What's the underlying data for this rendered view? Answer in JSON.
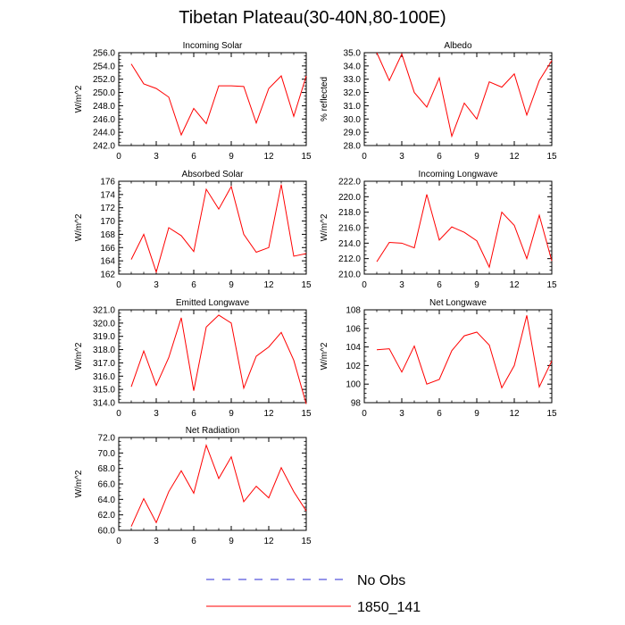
{
  "title": "Tibetan Plateau(30-40N,80-100E)",
  "colors": {
    "model": "#ff0000",
    "obs": "#2b2bd6",
    "axis": "#000000"
  },
  "legend": [
    {
      "label": "No Obs",
      "style": "dashed",
      "color": "#2b2bd6"
    },
    {
      "label": "1850_141",
      "style": "solid",
      "color": "#ff0000"
    }
  ],
  "chart_data": [
    {
      "type": "line",
      "title": "Incoming Solar",
      "ylabel": "W/m^2",
      "x": [
        1,
        2,
        3,
        4,
        5,
        6,
        7,
        8,
        9,
        10,
        11,
        12,
        13,
        14,
        15
      ],
      "xlim": [
        0,
        15
      ],
      "xticks": [
        0,
        3,
        6,
        9,
        12,
        15
      ],
      "ylim": [
        242,
        256
      ],
      "yticks": [
        "242.0",
        "244.0",
        "246.0",
        "248.0",
        "250.0",
        "252.0",
        "254.0",
        "256.0"
      ],
      "series": [
        {
          "name": "1850_141",
          "values": [
            254.3,
            251.3,
            250.6,
            249.3,
            243.6,
            247.6,
            245.3,
            251.0,
            251.0,
            250.9,
            245.4,
            250.6,
            252.5,
            246.4,
            252.5
          ]
        }
      ]
    },
    {
      "type": "line",
      "title": "Albedo",
      "ylabel": "% reflected",
      "x": [
        1,
        2,
        3,
        4,
        5,
        6,
        7,
        8,
        9,
        10,
        11,
        12,
        13,
        14,
        15
      ],
      "xlim": [
        0,
        15
      ],
      "xticks": [
        0,
        3,
        6,
        9,
        12,
        15
      ],
      "ylim": [
        28,
        35
      ],
      "yticks": [
        "28.0",
        "29.0",
        "30.0",
        "31.0",
        "32.0",
        "33.0",
        "34.0",
        "35.0"
      ],
      "series": [
        {
          "name": "1850_141",
          "values": [
            35.0,
            32.9,
            34.9,
            32.0,
            30.9,
            33.1,
            28.7,
            31.2,
            30.0,
            32.8,
            32.4,
            33.4,
            30.3,
            32.9,
            34.4
          ]
        }
      ]
    },
    {
      "type": "line",
      "title": "Absorbed Solar",
      "ylabel": "W/m^2",
      "x": [
        1,
        2,
        3,
        4,
        5,
        6,
        7,
        8,
        9,
        10,
        11,
        12,
        13,
        14,
        15
      ],
      "xlim": [
        0,
        15
      ],
      "xticks": [
        0,
        3,
        6,
        9,
        12,
        15
      ],
      "ylim": [
        162,
        176
      ],
      "yticks": [
        "162",
        "164",
        "166",
        "168",
        "170",
        "172",
        "174",
        "176"
      ],
      "series": [
        {
          "name": "1850_141",
          "values": [
            164.2,
            168.0,
            162.3,
            169.0,
            167.8,
            165.4,
            174.8,
            171.8,
            175.2,
            168.0,
            165.3,
            166.0,
            175.5,
            164.7,
            165.1
          ]
        }
      ]
    },
    {
      "type": "line",
      "title": "Incoming Longwave",
      "ylabel": "W/m^2",
      "x": [
        1,
        2,
        3,
        4,
        5,
        6,
        7,
        8,
        9,
        10,
        11,
        12,
        13,
        14,
        15
      ],
      "xlim": [
        0,
        15
      ],
      "xticks": [
        0,
        3,
        6,
        9,
        12,
        15
      ],
      "ylim": [
        210,
        222
      ],
      "yticks": [
        "210.0",
        "212.0",
        "214.0",
        "216.0",
        "218.0",
        "220.0",
        "222.0"
      ],
      "series": [
        {
          "name": "1850_141",
          "values": [
            211.6,
            214.1,
            214.0,
            213.4,
            220.3,
            214.4,
            216.1,
            215.4,
            214.3,
            210.9,
            218.0,
            216.3,
            212.0,
            217.6,
            211.7
          ]
        }
      ]
    },
    {
      "type": "line",
      "title": "Emitted Longwave",
      "ylabel": "W/m^2",
      "x": [
        1,
        2,
        3,
        4,
        5,
        6,
        7,
        8,
        9,
        10,
        11,
        12,
        13,
        14,
        15
      ],
      "xlim": [
        0,
        15
      ],
      "xticks": [
        0,
        3,
        6,
        9,
        12,
        15
      ],
      "ylim": [
        314,
        321
      ],
      "yticks": [
        "314.0",
        "315.0",
        "316.0",
        "317.0",
        "318.0",
        "319.0",
        "320.0",
        "321.0"
      ],
      "series": [
        {
          "name": "1850_141",
          "values": [
            315.2,
            317.9,
            315.3,
            317.4,
            320.4,
            314.9,
            319.7,
            320.6,
            320.0,
            315.1,
            317.5,
            318.2,
            319.3,
            317.2,
            313.9
          ]
        }
      ]
    },
    {
      "type": "line",
      "title": "Net Longwave",
      "ylabel": "W/m^2",
      "x": [
        1,
        2,
        3,
        4,
        5,
        6,
        7,
        8,
        9,
        10,
        11,
        12,
        13,
        14,
        15
      ],
      "xlim": [
        0,
        15
      ],
      "xticks": [
        0,
        3,
        6,
        9,
        12,
        15
      ],
      "ylim": [
        98,
        108
      ],
      "yticks": [
        "98",
        "100",
        "102",
        "104",
        "106",
        "108"
      ],
      "series": [
        {
          "name": "1850_141",
          "values": [
            103.7,
            103.8,
            101.3,
            104.1,
            100.0,
            100.5,
            103.6,
            105.2,
            105.6,
            104.2,
            99.6,
            102.0,
            107.4,
            99.7,
            102.5
          ]
        }
      ]
    },
    {
      "type": "line",
      "title": "Net Radiation",
      "ylabel": "W/m^2",
      "x": [
        1,
        2,
        3,
        4,
        5,
        6,
        7,
        8,
        9,
        10,
        11,
        12,
        13,
        14,
        15
      ],
      "xlim": [
        0,
        15
      ],
      "xticks": [
        0,
        3,
        6,
        9,
        12,
        15
      ],
      "ylim": [
        60,
        72
      ],
      "yticks": [
        "60.0",
        "62.0",
        "64.0",
        "66.0",
        "68.0",
        "70.0",
        "72.0"
      ],
      "series": [
        {
          "name": "1850_141",
          "values": [
            60.5,
            64.1,
            61.0,
            65.0,
            67.7,
            64.8,
            71.0,
            66.7,
            69.5,
            63.7,
            65.7,
            64.2,
            68.1,
            65.0,
            62.5
          ]
        }
      ]
    }
  ]
}
